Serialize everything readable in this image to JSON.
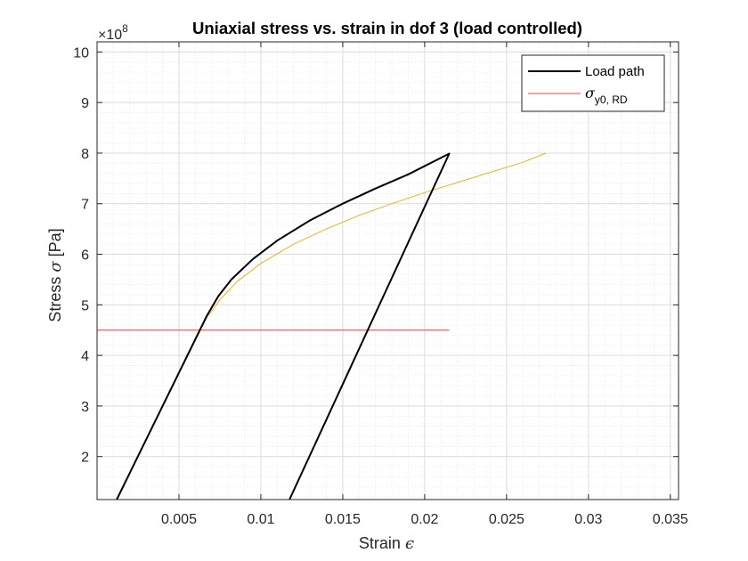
{
  "chart_data": {
    "type": "line",
    "title": "Uniaxial stress vs. strain in dof 3 (load controlled)",
    "xlabel": "Strain",
    "xlabel_symbol": "ϵ",
    "ylabel": "Stress",
    "ylabel_symbol": "σ",
    "ylabel_unit": "[Pa]",
    "y_exponent_label": {
      "base": "×10",
      "exp": "8"
    },
    "xlim": [
      0.0,
      0.0355
    ],
    "ylim": [
      1.15,
      10.2
    ],
    "y_scale_factor": 100000000,
    "xticks": [
      0.005,
      0.01,
      0.015,
      0.02,
      0.025,
      0.03,
      0.035
    ],
    "xtick_labels": [
      "0.005",
      "0.01",
      "0.015",
      "0.02",
      "0.025",
      "0.03",
      "0.035"
    ],
    "yticks": [
      2,
      3,
      4,
      5,
      6,
      7,
      8,
      9,
      10
    ],
    "ytick_labels": [
      "2",
      "3",
      "4",
      "5",
      "6",
      "7",
      "8",
      "9",
      "10"
    ],
    "grid": true,
    "minor_grid": true,
    "legend_position": "top-right",
    "series": [
      {
        "name": "Load path",
        "color": "#000000",
        "in_legend": true,
        "x": [
          0.0012,
          0.0067,
          0.0074,
          0.0082,
          0.0095,
          0.011,
          0.013,
          0.015,
          0.017,
          0.019,
          0.0215,
          0.01175
        ],
        "y": [
          1.15,
          4.78,
          5.17,
          5.5,
          5.9,
          6.27,
          6.67,
          7.0,
          7.3,
          7.58,
          7.99,
          1.15
        ]
      },
      {
        "name": "σ_y0, RD",
        "color": "#e8454a",
        "in_legend": true,
        "x": [
          0.0,
          0.0215
        ],
        "y": [
          4.5,
          4.5
        ]
      },
      {
        "name": "",
        "color": "#edb120",
        "in_legend": false,
        "x": [
          0.0012,
          0.0067,
          0.0075,
          0.0085,
          0.01,
          0.012,
          0.014,
          0.016,
          0.018,
          0.02,
          0.022,
          0.024,
          0.026,
          0.0274
        ],
        "y": [
          1.15,
          4.75,
          5.1,
          5.45,
          5.82,
          6.2,
          6.5,
          6.77,
          7.0,
          7.22,
          7.42,
          7.62,
          7.82,
          8.0
        ]
      }
    ]
  }
}
